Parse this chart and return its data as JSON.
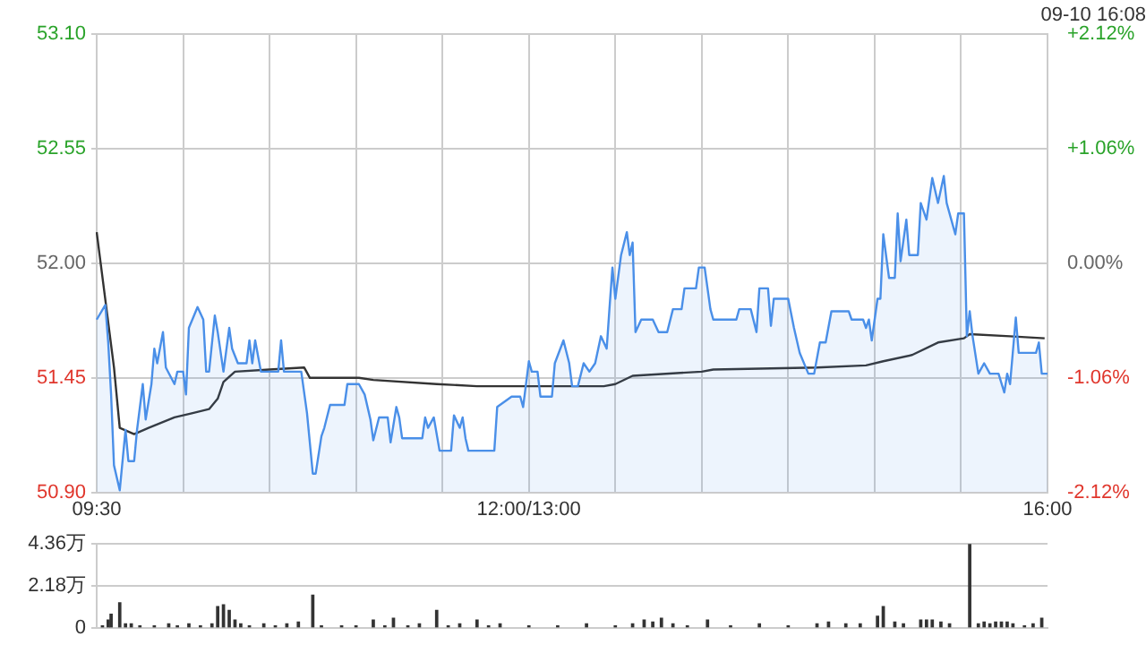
{
  "chart_data": [
    {
      "type": "line",
      "subtitle": "09-10 16:08",
      "marker": "none",
      "grid": true,
      "categories": [
        "09:30",
        null,
        null,
        null,
        null,
        null,
        null,
        null,
        null,
        null,
        null,
        null,
        null,
        null,
        null,
        null,
        null,
        null,
        null,
        null,
        null,
        null,
        null,
        null,
        null,
        null,
        null,
        null,
        null,
        null,
        null,
        null,
        null,
        null,
        null,
        null,
        null,
        null,
        null,
        null,
        null,
        null,
        null,
        null,
        null,
        null,
        null,
        null,
        null,
        null,
        null,
        null,
        null,
        null,
        null,
        null,
        null,
        null,
        null,
        null,
        null,
        null,
        null,
        null,
        null,
        null,
        null,
        null,
        null,
        null,
        null,
        null,
        null,
        null,
        null,
        null,
        null,
        null,
        null,
        null,
        null,
        null,
        null,
        null,
        null,
        null,
        null,
        null,
        null,
        null,
        null,
        null,
        null,
        null,
        null,
        null,
        null,
        null,
        null,
        null,
        null,
        null,
        null,
        null,
        null,
        null,
        null,
        null,
        null,
        null,
        null,
        null,
        null,
        null,
        null,
        null,
        null,
        null,
        null,
        null,
        null,
        null,
        null,
        null,
        null,
        null,
        null,
        null,
        null,
        null,
        null,
        null,
        null,
        null,
        null,
        null,
        null,
        null,
        null,
        null,
        null,
        null,
        null,
        null,
        null,
        null,
        null,
        null,
        null,
        null,
        "12:00/13:00",
        null,
        null,
        null,
        null,
        null,
        null,
        null,
        null,
        null,
        null,
        null,
        null,
        null,
        null,
        null,
        null,
        null,
        null,
        null,
        null,
        null,
        null,
        null,
        null,
        null,
        null,
        null,
        null,
        null,
        null,
        null,
        null,
        null,
        null,
        null,
        null,
        null,
        null,
        null,
        null,
        null,
        null,
        null,
        null,
        null,
        null,
        null,
        null,
        null,
        null,
        null,
        null,
        null,
        null,
        null,
        null,
        null,
        null,
        null,
        null,
        null,
        null,
        null,
        null,
        null,
        null,
        null,
        null,
        null,
        null,
        null,
        null,
        null,
        null,
        null,
        null,
        null,
        null,
        null,
        null,
        null,
        null,
        null,
        null,
        null,
        null,
        null,
        null,
        null,
        null,
        null,
        null,
        null,
        null,
        null,
        null,
        null,
        null,
        null,
        null,
        null,
        null,
        null,
        null,
        null,
        null,
        null,
        null,
        null,
        null,
        null,
        null,
        null,
        null,
        null,
        null,
        null,
        null,
        null,
        null,
        null,
        null,
        null,
        null,
        null,
        null,
        null,
        null,
        null,
        null,
        null,
        null,
        null,
        null,
        null,
        null,
        null,
        null,
        null,
        null,
        null,
        null,
        null,
        null,
        null,
        null,
        null,
        null,
        null,
        null,
        null,
        null,
        null,
        null,
        null,
        null,
        null,
        null,
        null,
        null,
        null,
        null,
        null,
        null,
        null,
        null,
        null,
        null,
        null,
        null,
        null,
        null,
        null,
        null,
        null,
        null,
        null,
        null,
        null,
        "16:00"
      ],
      "ylim": [
        50.9,
        53.1
      ],
      "yticks": [
        {
          "value": 50.9,
          "label": "50.90"
        },
        {
          "value": 51.45,
          "label": "51.45"
        },
        {
          "value": 52.0,
          "label": "52.00"
        },
        {
          "value": 52.55,
          "label": "52.55"
        },
        {
          "value": 53.1,
          "label": "53.10"
        }
      ],
      "y2lim": [
        -2.12,
        2.12
      ],
      "y2ticks": [
        {
          "value": -2.12,
          "label": "-2.12%"
        },
        {
          "value": -1.06,
          "label": "-1.06%"
        },
        {
          "value": 0,
          "label": "0.00%"
        },
        {
          "value": 1.06,
          "label": "+1.06%"
        },
        {
          "value": 2.12,
          "label": "+2.12%"
        }
      ],
      "series": [
        {
          "type": "area",
          "color": "#4a8fe8",
          "values": [
            51.73,
            null,
            null,
            51.8,
            51.62,
            51.37,
            51.03,
            null,
            50.91,
            null,
            51.2,
            51.05,
            null,
            51.05,
            51.2,
            null,
            51.42,
            51.25,
            null,
            51.42,
            51.59,
            51.52,
            null,
            51.67,
            51.5,
            null,
            null,
            51.42,
            51.48,
            null,
            51.48,
            51.37,
            51.69,
            null,
            null,
            51.79,
            null,
            51.73,
            51.48,
            51.48,
            null,
            51.75,
            51.67,
            null,
            51.48,
            null,
            51.69,
            51.59,
            null,
            51.52,
            null,
            null,
            51.52,
            51.63,
            51.52,
            51.63,
            null,
            51.48,
            null,
            null,
            null,
            null,
            null,
            51.48,
            51.63,
            51.48,
            null,
            null,
            null,
            null,
            null,
            51.48,
            null,
            51.28,
            null,
            50.99,
            50.99,
            null,
            51.17,
            51.21,
            null,
            51.32,
            null,
            null,
            null,
            null,
            51.32,
            51.42,
            null,
            null,
            null,
            51.42,
            null,
            51.37,
            null,
            51.25,
            51.15,
            null,
            51.26,
            null,
            null,
            51.26,
            51.14,
            null,
            51.31,
            51.26,
            51.16,
            null,
            null,
            null,
            null,
            null,
            null,
            51.16,
            51.26,
            51.21,
            null,
            51.26,
            null,
            51.1,
            null,
            null,
            null,
            51.1,
            51.27,
            null,
            51.21,
            51.26,
            51.16,
            51.1,
            null,
            null,
            null,
            null,
            null,
            null,
            null,
            null,
            51.1,
            51.31,
            null,
            null,
            null,
            null,
            51.36,
            null,
            null,
            51.36,
            51.31,
            null,
            51.53,
            51.48,
            null,
            51.48,
            51.36,
            null,
            null,
            null,
            51.36,
            51.52,
            null,
            null,
            51.63,
            null,
            51.52,
            51.41,
            null,
            51.41,
            null,
            51.52,
            null,
            51.48,
            null,
            51.52,
            null,
            51.65,
            null,
            51.59,
            51.79,
            51.98,
            51.83,
            null,
            52.04,
            null,
            52.15,
            52.04,
            52.1,
            51.67,
            null,
            51.73,
            null,
            null,
            null,
            51.73,
            null,
            51.67,
            null,
            null,
            51.67,
            null,
            51.78,
            null,
            null,
            51.78,
            51.88,
            null,
            null,
            null,
            51.88,
            51.98,
            null,
            51.98,
            null,
            51.78,
            51.73,
            null,
            null,
            null,
            null,
            null,
            null,
            null,
            51.73,
            51.78,
            null,
            null,
            null,
            51.78,
            null,
            51.67,
            51.88,
            null,
            null,
            51.88,
            51.7,
            51.83,
            null,
            null,
            null,
            null,
            51.83,
            null,
            51.69,
            null,
            51.57,
            null,
            null,
            51.47,
            null,
            51.47,
            null,
            51.62,
            null,
            51.62,
            null,
            51.77,
            null,
            null,
            null,
            null,
            null,
            51.77,
            51.73,
            null,
            null,
            null,
            51.73,
            51.69,
            51.73,
            51.63,
            null,
            51.83,
            51.83,
            52.14,
            null,
            51.93,
            null,
            51.93,
            52.24,
            52.01,
            null,
            52.21,
            52.04,
            null,
            null,
            52.04,
            52.29,
            null,
            52.21,
            null,
            52.41,
            null,
            52.29,
            null,
            52.42,
            52.29,
            null,
            null,
            52.14,
            52.24,
            null,
            52.24,
            51.65,
            51.77,
            51.65,
            null,
            51.47,
            null,
            51.52,
            null,
            51.47,
            null,
            null,
            51.47,
            null,
            51.38,
            51.47,
            51.42,
            null,
            51.74,
            51.57,
            null,
            null,
            null,
            null,
            null,
            51.57,
            51.62,
            51.47,
            null,
            51.47
          ]
        },
        {
          "type": "line",
          "color": "#333333",
          "values": [
            52.15,
            null,
            null,
            null,
            null,
            null,
            51.5,
            null,
            51.21,
            null,
            null,
            null,
            null,
            51.18,
            null,
            null,
            null,
            null,
            51.21,
            null,
            null,
            null,
            null,
            null,
            null,
            null,
            null,
            51.26,
            null,
            null,
            null,
            null,
            null,
            51.28,
            null,
            null,
            null,
            null,
            null,
            51.3,
            null,
            null,
            51.35,
            null,
            51.43,
            null,
            null,
            null,
            51.48,
            null,
            null,
            null,
            null,
            null,
            null,
            null,
            null,
            null,
            null,
            null,
            51.49,
            null,
            null,
            null,
            null,
            null,
            null,
            null,
            null,
            null,
            null,
            null,
            51.5,
            null,
            51.45,
            null,
            null,
            null,
            null,
            null,
            null,
            null,
            null,
            null,
            null,
            null,
            null,
            null,
            null,
            null,
            null,
            51.45,
            null,
            null,
            null,
            null,
            51.44,
            null,
            null,
            null,
            null,
            null,
            null,
            null,
            null,
            null,
            null,
            null,
            null,
            null,
            null,
            null,
            null,
            null,
            null,
            null,
            null,
            null,
            51.42,
            null,
            null,
            null,
            null,
            null,
            null,
            null,
            null,
            null,
            null,
            null,
            null,
            null,
            51.41,
            null,
            null,
            null,
            null,
            null,
            null,
            null,
            null,
            null,
            null,
            null,
            null,
            null,
            null,
            51.41,
            null,
            null,
            null,
            null,
            null,
            null,
            null,
            null,
            null,
            null,
            null,
            null,
            null,
            null,
            null,
            null,
            null,
            null,
            null,
            null,
            null,
            null,
            null,
            null,
            null,
            null,
            null,
            null,
            51.41,
            null,
            null,
            null,
            51.42,
            null,
            null,
            null,
            null,
            null,
            51.46,
            null,
            null,
            null,
            null,
            null,
            null,
            null,
            null,
            null,
            null,
            null,
            null,
            null,
            null,
            null,
            null,
            null,
            null,
            null,
            null,
            null,
            null,
            null,
            51.48,
            null,
            null,
            null,
            51.49,
            null,
            null,
            null,
            null,
            null,
            null,
            null,
            null,
            null,
            null,
            null,
            null,
            null,
            null,
            null,
            null,
            null,
            null,
            null,
            null,
            null,
            null,
            null,
            null,
            null,
            null,
            null,
            null,
            null,
            null,
            null,
            null,
            null,
            null,
            null,
            51.5,
            null,
            null,
            null,
            null,
            null,
            null,
            null,
            null,
            null,
            null,
            null,
            null,
            null,
            null,
            null,
            null,
            51.51,
            null,
            null,
            null,
            null,
            null,
            51.53,
            null,
            null,
            null,
            null,
            null,
            null,
            null,
            null,
            null,
            51.56,
            null,
            null,
            null,
            null,
            null,
            null,
            null,
            null,
            51.62,
            null,
            null,
            null,
            null,
            null,
            null,
            null,
            null,
            51.64,
            null,
            51.66,
            null,
            null,
            null,
            null,
            null,
            null,
            null,
            null,
            null,
            null,
            null,
            null,
            null,
            51.65,
            null,
            null,
            null,
            null,
            null,
            null,
            null,
            null,
            null,
            null,
            null,
            51.64,
            null
          ]
        }
      ]
    },
    {
      "type": "bar",
      "grid": "y",
      "tick_labels": "y",
      "color": "#333333",
      "categories": [
        null,
        null,
        null,
        null,
        null,
        null,
        null,
        null,
        null,
        null,
        null,
        null,
        null,
        null,
        null,
        null,
        null,
        null,
        null,
        null,
        null,
        null,
        null,
        null,
        null,
        null,
        null,
        null,
        null,
        null,
        null,
        null,
        null,
        null,
        null,
        null,
        null,
        null,
        null,
        null,
        null,
        null,
        null,
        null,
        null,
        null,
        null,
        null,
        null,
        null,
        null,
        null,
        null,
        null,
        null,
        null,
        null,
        null,
        null,
        null,
        null,
        null,
        null,
        null,
        null,
        null,
        null,
        null,
        null,
        null,
        null,
        null,
        null,
        null,
        null,
        null,
        null,
        null,
        null,
        null,
        null,
        null,
        null,
        null,
        null,
        null,
        null,
        null,
        null,
        null,
        null,
        null,
        null,
        null,
        null,
        null,
        null,
        null,
        null,
        null,
        null,
        null,
        null,
        null,
        null,
        null,
        null,
        null,
        null,
        null,
        null,
        null,
        null,
        null,
        null,
        null,
        null,
        null,
        null,
        null,
        null,
        null,
        null,
        null,
        null,
        null,
        null,
        null,
        null,
        null,
        null,
        null,
        null,
        null,
        null,
        null,
        null,
        null,
        null,
        null,
        null,
        null,
        null,
        null,
        null,
        null,
        null,
        null,
        null,
        null,
        null,
        null,
        null,
        null,
        null,
        null,
        null,
        null,
        null,
        null,
        null,
        null,
        null,
        null,
        null,
        null,
        null,
        null,
        null,
        null,
        null,
        null,
        null,
        null,
        null,
        null,
        null,
        null,
        null,
        null,
        null,
        null,
        null,
        null,
        null,
        null,
        null,
        null,
        null,
        null,
        null,
        null,
        null,
        null,
        null,
        null,
        null,
        null,
        null,
        null,
        null,
        null,
        null,
        null,
        null,
        null,
        null,
        null,
        null,
        null,
        null,
        null,
        null,
        null,
        null,
        null,
        null,
        null,
        null,
        null,
        null,
        null,
        null,
        null,
        null,
        null,
        null,
        null,
        null,
        null,
        null,
        null,
        null,
        null,
        null,
        null,
        null,
        null,
        null,
        null,
        null,
        null,
        null,
        null,
        null,
        null,
        null,
        null,
        null,
        null,
        null,
        null,
        null,
        null,
        null,
        null,
        null,
        null,
        null,
        null,
        null,
        null,
        null,
        null,
        null,
        null,
        null,
        null,
        null,
        null,
        null,
        null,
        null,
        null,
        null,
        null,
        null,
        null,
        null,
        null,
        null,
        null,
        null,
        null,
        null,
        null,
        null,
        null,
        null,
        null,
        null,
        null,
        null,
        null,
        null,
        null,
        null,
        null,
        null,
        null,
        null,
        null,
        null,
        null,
        null,
        null,
        null,
        null,
        null,
        null,
        null,
        null,
        null,
        null,
        null,
        null,
        null,
        null,
        null,
        null,
        null,
        null,
        null,
        null,
        null,
        null,
        null,
        null,
        null,
        null,
        null
      ],
      "ylim": [
        0,
        4.36
      ],
      "yticks": [
        0,
        {
          "value": 2.18,
          "label": "2.18万"
        },
        {
          "value": 4.36,
          "label": "4.36万"
        }
      ],
      "values": [
        null,
        null,
        0.1,
        null,
        0.4,
        0.7,
        null,
        null,
        1.3,
        null,
        0.2,
        null,
        0.2,
        null,
        null,
        0.1,
        null,
        null,
        null,
        null,
        0.1,
        null,
        null,
        null,
        null,
        0.2,
        null,
        null,
        0.1,
        null,
        null,
        null,
        0.2,
        null,
        null,
        null,
        0.1,
        null,
        null,
        null,
        0.2,
        null,
        1.1,
        null,
        1.2,
        null,
        0.9,
        null,
        0.4,
        null,
        0.2,
        null,
        null,
        0.1,
        null,
        null,
        null,
        null,
        0.2,
        null,
        null,
        null,
        0.1,
        null,
        null,
        null,
        0.2,
        null,
        null,
        null,
        0.3,
        null,
        null,
        null,
        null,
        1.7,
        null,
        null,
        0.1,
        null,
        null,
        null,
        null,
        null,
        null,
        0.1,
        null,
        null,
        null,
        null,
        0.1,
        null,
        null,
        null,
        null,
        null,
        0.4,
        null,
        null,
        null,
        0.1,
        null,
        null,
        0.5,
        null,
        null,
        null,
        null,
        0.1,
        null,
        null,
        null,
        0.2,
        null,
        null,
        null,
        null,
        null,
        0.9,
        null,
        null,
        null,
        0.1,
        null,
        null,
        null,
        0.2,
        null,
        null,
        null,
        null,
        null,
        0.4,
        null,
        null,
        null,
        0.1,
        null,
        null,
        null,
        0.2,
        null,
        null,
        null,
        null,
        null,
        null,
        null,
        null,
        null,
        0.1,
        null,
        null,
        null,
        null,
        null,
        null,
        null,
        null,
        null,
        0.1,
        null,
        null,
        null,
        null,
        null,
        null,
        null,
        null,
        null,
        0.2,
        null,
        null,
        null,
        null,
        null,
        null,
        null,
        null,
        null,
        0.1,
        null,
        null,
        null,
        null,
        null,
        0.2,
        null,
        null,
        null,
        0.4,
        null,
        null,
        0.3,
        null,
        null,
        0.5,
        null,
        null,
        null,
        0.2,
        null,
        null,
        null,
        null,
        0.1,
        null,
        null,
        null,
        null,
        null,
        null,
        0.4,
        null,
        null,
        null,
        null,
        null,
        null,
        null,
        0.1,
        null,
        null,
        null,
        null,
        null,
        null,
        null,
        null,
        null,
        0.2,
        null,
        null,
        null,
        null,
        null,
        null,
        null,
        null,
        null,
        0.1,
        null,
        null,
        null,
        null,
        null,
        null,
        null,
        null,
        null,
        0.2,
        null,
        null,
        null,
        0.3,
        null,
        null,
        null,
        null,
        null,
        0.2,
        null,
        null,
        null,
        null,
        0.2,
        null,
        null,
        null,
        null,
        null,
        0.6,
        null,
        1.1,
        null,
        null,
        null,
        0.3,
        null,
        null,
        0.2,
        null,
        null,
        null,
        null,
        null,
        0.4,
        null,
        0.4,
        null,
        0.4,
        null,
        null,
        0.3,
        null,
        null,
        0.2,
        null,
        null,
        null,
        null,
        null,
        null,
        4.36,
        null,
        null,
        0.2,
        null,
        0.3,
        null,
        0.2,
        null,
        0.3,
        null,
        0.3,
        null,
        0.3,
        null,
        0.2,
        null,
        null,
        null,
        0.1,
        null,
        null,
        0.2,
        null,
        null,
        0.5,
        null,
        null
      ]
    }
  ]
}
